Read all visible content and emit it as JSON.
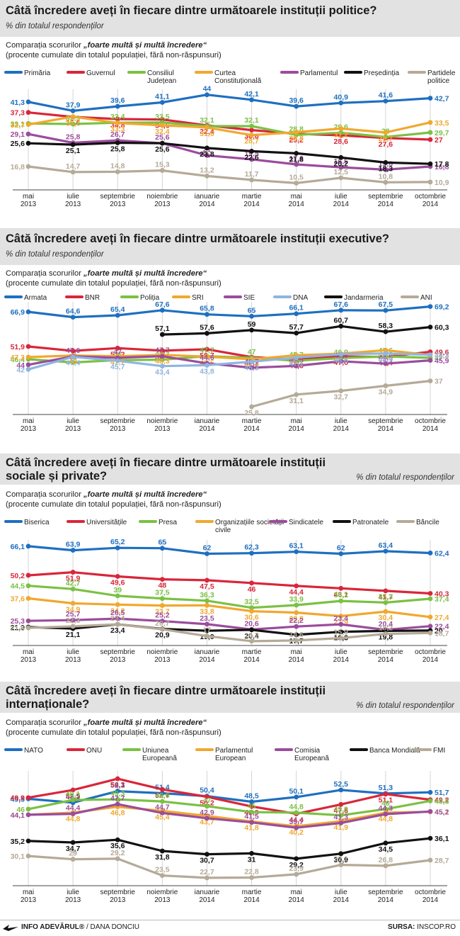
{
  "comparison": {
    "prefix": "Comparația scorurilor",
    "emph": "„foarte multă și multă încredere“",
    "sub": "(procente cumulate din totalul populației, fără non-răspunsuri)"
  },
  "unit_label": "% din totalul respondenților",
  "footer": {
    "brand": "INFO ADEVĂRUL®",
    "author": " / DANA DONCIU",
    "source_label": "SURSA:",
    "source": " INSCOP.RO"
  },
  "chart_data": [
    {
      "type": "line",
      "title": "Câtă încredere aveți în fiecare dintre următoarele instituții politice?",
      "x": [
        "mai 2013",
        "iulie 2013",
        "septembrie 2013",
        "noiembrie 2013",
        "ianuarie 2014",
        "martie 2014",
        "mai 2014",
        "iulie 2014",
        "septembrie 2014",
        "octombrie 2014"
      ],
      "series": [
        {
          "name": "Primăria",
          "color": "#1f6fc0",
          "values": [
            41.3,
            37.9,
            39.6,
            41.1,
            44.0,
            42.1,
            39.6,
            40.9,
            41.6,
            42.7
          ]
        },
        {
          "name": "Guvernul",
          "color": "#d9263a",
          "values": [
            37.3,
            35.6,
            34.8,
            34.6,
            32.4,
            30.6,
            29.2,
            28.6,
            27.6,
            27.0
          ]
        },
        {
          "name": "Consiliul Județean",
          "color": "#7ac143",
          "values": [
            33.1,
            32.9,
            33.4,
            33.5,
            32.1,
            32.1,
            28.8,
            29.6,
            28,
            29.7
          ]
        },
        {
          "name": "Curtea Constituțională",
          "color": "#f0a82e",
          "values": [
            32.7,
            35.7,
            33.3,
            32.4,
            31.6,
            28.7,
            29.8,
            31.2,
            29.7,
            33.5
          ]
        },
        {
          "name": "Parlamentul",
          "color": "#9b4c9c",
          "values": [
            29.1,
            25.8,
            26.7,
            25.6,
            21,
            19.5,
            17.6,
            16.5,
            15.6,
            16.8
          ]
        },
        {
          "name": "Președinția",
          "color": "#111111",
          "values": [
            25.6,
            25.1,
            25.8,
            25.6,
            23.8,
            22.6,
            21.8,
            20.2,
            18.3,
            17.8
          ]
        },
        {
          "name": "Partidele politice",
          "color": "#b5aa98",
          "values": [
            16.8,
            14.7,
            14.8,
            15.3,
            13.2,
            11.7,
            10.5,
            12.5,
            10.8,
            10.9
          ]
        }
      ]
    },
    {
      "type": "line",
      "title": "Câtă încredere aveți în fiecare dintre următoarele instituții executive?",
      "x": [
        "mai 2013",
        "iulie 2013",
        "septembrie 2013",
        "noiembrie 2013",
        "ianuarie 2014",
        "martie 2014",
        "mai 2014",
        "iulie 2014",
        "septembrie 2014",
        "octombrie 2014"
      ],
      "series": [
        {
          "name": "Armata",
          "color": "#1f6fc0",
          "values": [
            66.9,
            64.6,
            65.4,
            67.6,
            65.8,
            65,
            66.1,
            67.6,
            67.5,
            69.2
          ]
        },
        {
          "name": "BNR",
          "color": "#d9263a",
          "values": [
            51.9,
            50,
            51.2,
            50.1,
            50.7,
            47.3,
            46.3,
            47.6,
            47.4,
            49.6
          ]
        },
        {
          "name": "Poliția",
          "color": "#7ac143",
          "values": [
            46.4,
            45,
            46,
            46.2,
            47.7,
            47,
            45.7,
            46.9,
            47.6,
            47.0
          ]
        },
        {
          "name": "SRI",
          "color": "#f0a82e",
          "values": [
            47.3,
            48,
            47.7,
            48.3,
            47.5,
            46.4,
            48.1,
            48.8,
            50.3,
            48.2
          ]
        },
        {
          "name": "SIE",
          "color": "#9b4c9c",
          "values": [
            44.0,
            47.6,
            47,
            47.7,
            44.6,
            42.7,
            43.5,
            45.5,
            44.5,
            45.9
          ]
        },
        {
          "name": "DNA",
          "color": "#8fb5e0",
          "values": [
            42.0,
            47.4,
            45.7,
            43.4,
            43.8,
            45.3,
            47.1,
            48.6,
            48.9,
            48.3
          ]
        },
        {
          "name": "Jandarmeria",
          "color": "#111111",
          "values": [
            null,
            null,
            null,
            57.1,
            57.6,
            59,
            57.7,
            60.7,
            58.3,
            60.3
          ]
        },
        {
          "name": "ANI",
          "color": "#b5aa98",
          "values": [
            null,
            null,
            null,
            null,
            null,
            25.8,
            31.1,
            32.7,
            34.9,
            37.0
          ]
        }
      ]
    },
    {
      "type": "line",
      "title": "Câtă încredere aveți în fiecare dintre următoarele instituții sociale și private?",
      "x": [
        "mai 2013",
        "iulie 2013",
        "septembrie 2013",
        "noiembrie 2013",
        "ianuarie 2014",
        "martie 2014",
        "mai 2014",
        "iulie 2014",
        "septembrie 2014",
        "octombrie 2014"
      ],
      "series": [
        {
          "name": "Biserica",
          "color": "#1f6fc0",
          "values": [
            66.1,
            63.9,
            65.2,
            65.0,
            62.0,
            62.3,
            63.1,
            62.0,
            63.4,
            62.4
          ]
        },
        {
          "name": "Universitățile",
          "color": "#d9263a",
          "values": [
            50.2,
            51.9,
            49.6,
            48,
            47.5,
            46,
            44.4,
            43.1,
            41.7,
            40.3
          ]
        },
        {
          "name": "Presa",
          "color": "#7ac143",
          "values": [
            44.5,
            42.7,
            39,
            37.5,
            36.3,
            32.5,
            33.9,
            36.2,
            35.3,
            37.4
          ]
        },
        {
          "name": "Organizațiile societății civile",
          "color": "#f0a82e",
          "values": [
            37.6,
            34.9,
            34.2,
            33.7,
            33.8,
            30.6,
            29.8,
            27.9,
            30.4,
            27.4
          ]
        },
        {
          "name": "Sindicatele",
          "color": "#9b4c9c",
          "values": [
            25.3,
            25.7,
            26.5,
            25.2,
            23.5,
            20.6,
            22.2,
            23.4,
            20.4,
            22.4
          ]
        },
        {
          "name": "Patronatele",
          "color": "#111111",
          "values": [
            21.9,
            21.1,
            23.4,
            20.9,
            19.9,
            20.4,
            17.7,
            19.3,
            19.8,
            20.0
          ]
        },
        {
          "name": "Băncile",
          "color": "#b5aa98",
          "values": [
            21.5,
            22.3,
            23.4,
            20.7,
            17,
            14.2,
            14.6,
            15.9,
            18.2,
            18.7
          ]
        }
      ]
    },
    {
      "type": "line",
      "title": "Câtă încredere aveți în fiecare dintre următoarele instituții internaționale?",
      "x": [
        "mai 2013",
        "iulie 2013",
        "septembrie 2013",
        "noiembrie 2013",
        "ianuarie 2014",
        "martie 2014",
        "mai 2014",
        "iulie 2014",
        "septembrie 2014",
        "octombrie 2014"
      ],
      "series": [
        {
          "name": "NATO",
          "color": "#1f6fc0",
          "values": [
            49.5,
            48.2,
            52.1,
            51.4,
            50.4,
            48.5,
            50.1,
            52.5,
            51.3,
            51.7
          ]
        },
        {
          "name": "ONU",
          "color": "#d9263a",
          "values": [
            49.9,
            52.5,
            56.3,
            52.7,
            50.2,
            46.9,
            44.4,
            47.6,
            51.1,
            49.2
          ]
        },
        {
          "name": "Uniunea Europeană",
          "color": "#7ac143",
          "values": [
            46.0,
            49.1,
            49.3,
            48.6,
            47,
            45,
            44.8,
            43.9,
            46,
            48.8
          ]
        },
        {
          "name": "Parlamentul European",
          "color": "#f0a82e",
          "values": [
            44.1,
            44.8,
            46.8,
            45.4,
            43.7,
            41.8,
            40.2,
            41.9,
            44.8,
            45.1
          ]
        },
        {
          "name": "Comisia Europeană",
          "color": "#9b4c9c",
          "values": [
            44.1,
            44.4,
            47.7,
            44.7,
            42.9,
            41.5,
            39.7,
            41.3,
            44.3,
            45.2
          ]
        },
        {
          "name": "Banca Mondială",
          "color": "#111111",
          "values": [
            35.2,
            34.7,
            35.6,
            31.8,
            30.7,
            31,
            29.2,
            30.9,
            34.5,
            36.1
          ]
        },
        {
          "name": "FMI",
          "color": "#b5aa98",
          "values": [
            30.1,
            29,
            29.2,
            23.5,
            22.7,
            22.8,
            23.9,
            27.1,
            26.8,
            28.7
          ]
        }
      ]
    }
  ]
}
